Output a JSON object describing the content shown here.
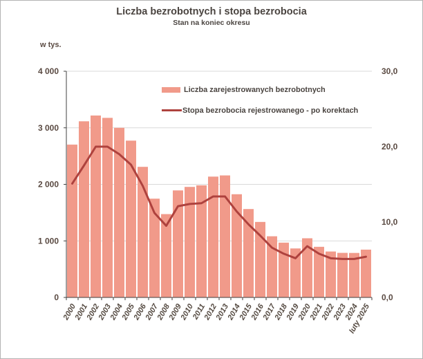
{
  "colors": {
    "bar_fill": "#f19a8a",
    "line_stroke": "#ae423e",
    "grid": "#d9d9d9",
    "axis": "#404040",
    "frame_border": "#b3b3b3"
  },
  "chart_data": {
    "type": "bar",
    "title": "Liczba bezrobotnych i stopa bezrobocia",
    "subtitle": "Stan na koniec okresu",
    "xlabel": "",
    "ylabel": "w tys.",
    "grid": true,
    "legend_position": "top-inside",
    "categories": [
      "2000",
      "2001",
      "2002",
      "2003",
      "2004",
      "2005",
      "2006",
      "2007",
      "2008",
      "2009",
      "2010",
      "2011",
      "2012",
      "2013",
      "2014",
      "2015",
      "2016",
      "2017",
      "2018",
      "2019",
      "2020",
      "2021",
      "2022",
      "2023",
      "2024",
      "luty 2025"
    ],
    "series": [
      {
        "name": "Liczba zarejestrowanych bezrobotnych",
        "type": "bar",
        "axis": "left",
        "unit": "tys.",
        "values": [
          2702.6,
          3115.1,
          3217.0,
          3175.7,
          2999.6,
          2773.0,
          2309.4,
          1746.6,
          1473.8,
          1892.7,
          1954.7,
          1982.7,
          2136.8,
          2157.9,
          1825.2,
          1563.3,
          1335.2,
          1081.7,
          968.9,
          866.4,
          1046.4,
          895.2,
          812.3,
          788.2,
          786.9,
          845.5
        ]
      },
      {
        "name": "Stopa bezrobocia rejestrowanego - po korektach",
        "type": "line",
        "axis": "right",
        "unit": "%",
        "values": [
          15.1,
          17.5,
          20.0,
          20.0,
          19.0,
          17.6,
          14.8,
          11.2,
          9.5,
          12.1,
          12.4,
          12.5,
          13.4,
          13.4,
          11.4,
          9.7,
          8.2,
          6.6,
          5.8,
          5.2,
          6.8,
          5.8,
          5.2,
          5.1,
          5.1,
          5.4
        ]
      }
    ],
    "left_axis": {
      "label": "w tys.",
      "min": 0,
      "max": 4000,
      "tick_labels": [
        "4 000",
        "3 000",
        "2 000",
        "1 000",
        "0"
      ]
    },
    "right_axis": {
      "min": 0,
      "max": 30,
      "tick_labels": [
        "30,0",
        "20,0",
        "10,0",
        "0,0"
      ]
    }
  }
}
